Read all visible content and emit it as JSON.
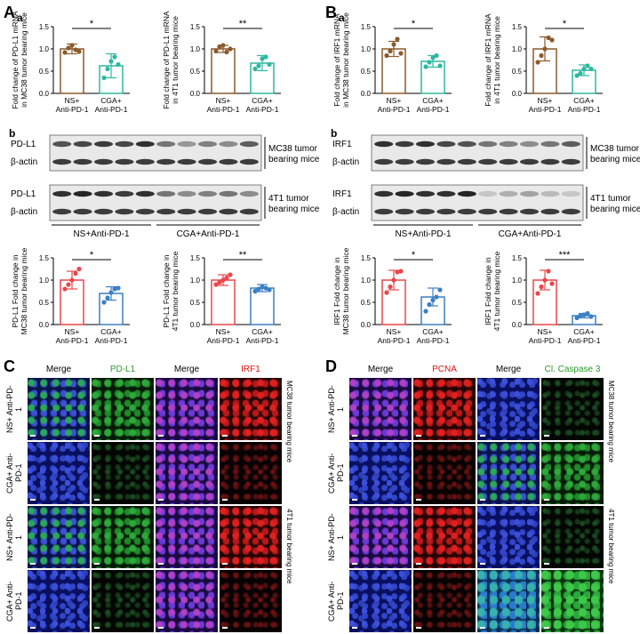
{
  "panels": {
    "A": "A",
    "A_a": "a",
    "A_b": "b",
    "B": "B",
    "B_a": "a",
    "B_b": "b",
    "C": "C",
    "D": "D"
  },
  "colors": {
    "ns_bar": "#8B5A2B",
    "cga_bar": "#2fb8a0",
    "ns_wb": "#e8474b",
    "cga_wb": "#3b7fc4",
    "red_dot": "#e8474b",
    "blue_dot": "#3b7fc4"
  },
  "chart_data": [
    {
      "id": "A_a_left",
      "type": "bar",
      "categories": [
        "NS+\nAnti-PD-1",
        "CGA+\nAnti-PD-1"
      ],
      "values": [
        1.0,
        0.62
      ],
      "errors": [
        0.11,
        0.27
      ],
      "points": [
        [
          0.92,
          1.02,
          1.08,
          0.98,
          0.94
        ],
        [
          0.35,
          0.55,
          0.72,
          0.82,
          0.65
        ]
      ],
      "ylabel": "Fold change of PD-L1 mRNA\nin MC38 tumor bearing mice",
      "ylim": [
        0,
        1.5
      ],
      "sig": "*",
      "yticks": [
        "0.0",
        "0.5",
        "1.0",
        "1.5"
      ]
    },
    {
      "id": "A_a_right",
      "type": "bar",
      "categories": [
        "NS+\nAnti-PD-1",
        "CGA+\nAnti-PD-1"
      ],
      "values": [
        1.0,
        0.68
      ],
      "errors": [
        0.08,
        0.17
      ],
      "points": [
        [
          0.95,
          1.05,
          1.08,
          0.93,
          1.0
        ],
        [
          0.55,
          0.62,
          0.78,
          0.82,
          0.65
        ]
      ],
      "ylabel": "Fold change of PD-L1 mRNA\nin 4T1 tumor bearing mice",
      "ylim": [
        0,
        1.5
      ],
      "sig": "**",
      "yticks": [
        "0.0",
        "0.5",
        "1.0",
        "1.5"
      ]
    },
    {
      "id": "B_a_left",
      "type": "bar",
      "categories": [
        "NS+\nAnti-PD-1",
        "CGA+\nAnti-PD-1"
      ],
      "values": [
        1.0,
        0.72
      ],
      "errors": [
        0.17,
        0.13
      ],
      "points": [
        [
          0.85,
          0.95,
          1.1,
          1.22,
          0.9
        ],
        [
          0.6,
          0.7,
          0.8,
          0.85,
          0.62
        ]
      ],
      "ylabel": "Fold change of IRF1 mRNA\nin MC38 tumor bearing mice",
      "ylim": [
        0,
        1.5
      ],
      "sig": "*",
      "yticks": [
        "0.0",
        "0.5",
        "1.0",
        "1.5"
      ]
    },
    {
      "id": "B_a_right",
      "type": "bar",
      "categories": [
        "NS+\nAnti-PD-1",
        "CGA+\nAnti-PD-1"
      ],
      "values": [
        1.0,
        0.52
      ],
      "errors": [
        0.27,
        0.12
      ],
      "points": [
        [
          0.7,
          0.85,
          1.0,
          1.25,
          1.2
        ],
        [
          0.4,
          0.45,
          0.55,
          0.62,
          0.55
        ]
      ],
      "ylabel": "Fold change of IRF1 mRNA\nin 4T1 tumor bearing mice",
      "ylim": [
        0,
        1.5
      ],
      "sig": "*",
      "yticks": [
        "0.0",
        "0.5",
        "1.0",
        "1.5"
      ]
    },
    {
      "id": "A_b_left",
      "type": "bar",
      "categories": [
        "NS+\nAnti-PD-1",
        "CGA+\nAnti-PD-1"
      ],
      "values": [
        1.0,
        0.7
      ],
      "errors": [
        0.2,
        0.15
      ],
      "points": [
        [
          0.8,
          0.9,
          1.0,
          1.15,
          1.25
        ],
        [
          0.5,
          0.6,
          0.72,
          0.8,
          0.82
        ]
      ],
      "ylabel": "PD-L1 Fold change in\nMC38 tumor bearing mice",
      "ylim": [
        0,
        1.5
      ],
      "sig": "*",
      "yticks": [
        "0.0",
        "0.5",
        "1.0",
        "1.5"
      ]
    },
    {
      "id": "A_b_right",
      "type": "bar",
      "categories": [
        "NS+\nAnti-PD-1",
        "CGA+\nAnti-PD-1"
      ],
      "values": [
        1.0,
        0.82
      ],
      "errors": [
        0.12,
        0.08
      ],
      "points": [
        [
          0.9,
          0.95,
          1.0,
          1.05,
          1.12
        ],
        [
          0.75,
          0.8,
          0.85,
          0.82,
          0.78
        ]
      ],
      "ylabel": "PD-L1 Fold change in\n4T1 tumor bearing mice",
      "ylim": [
        0,
        1.5
      ],
      "sig": "**",
      "yticks": [
        "0.0",
        "0.5",
        "1.0",
        "1.5"
      ]
    },
    {
      "id": "B_b_left",
      "type": "bar",
      "categories": [
        "NS+\nAnti-PD-1",
        "CGA+\nAnti-PD-1"
      ],
      "values": [
        1.0,
        0.62
      ],
      "errors": [
        0.22,
        0.2
      ],
      "points": [
        [
          0.72,
          0.85,
          1.0,
          1.18,
          1.2
        ],
        [
          0.3,
          0.45,
          0.55,
          0.62,
          0.78
        ]
      ],
      "ylabel": "IRF1 Fold change in\nMC38 tumor bearing mice",
      "ylim": [
        0,
        1.5
      ],
      "sig": "*",
      "yticks": [
        "0.0",
        "0.5",
        "1.0",
        "1.5"
      ]
    },
    {
      "id": "B_b_right",
      "type": "bar",
      "categories": [
        "NS+\nAnti-PD-1",
        "CGA+\nAnti-PD-1"
      ],
      "values": [
        1.0,
        0.2
      ],
      "errors": [
        0.22,
        0.05
      ],
      "points": [
        [
          0.7,
          0.85,
          1.0,
          1.2,
          0.92
        ],
        [
          0.15,
          0.2,
          0.22,
          0.25,
          0.18
        ]
      ],
      "ylabel": "IRF1 Fold change in\n4T1 tumor bearing mice",
      "ylim": [
        0,
        1.5
      ],
      "sig": "***",
      "yticks": [
        "0.0",
        "0.5",
        "1.0",
        "1.5"
      ]
    }
  ],
  "westerns": {
    "A_mc38": {
      "rows": [
        "PD-L1",
        "β-actin"
      ],
      "side": "MC38 tumor\nbearing mice",
      "pdl1": [
        0.75,
        0.8,
        0.85,
        0.8,
        0.9,
        0.6,
        0.45,
        0.55,
        0.5,
        0.7
      ]
    },
    "A_4t1": {
      "rows": [
        "PD-L1",
        "β-actin"
      ],
      "side": "4T1 tumor\nbearing mice",
      "pdl1": [
        0.9,
        0.95,
        0.9,
        0.85,
        0.9,
        0.6,
        0.5,
        0.55,
        0.6,
        0.5
      ]
    },
    "A_groups": [
      "NS+Anti-PD-1",
      "CGA+Anti-PD-1"
    ],
    "B_mc38": {
      "rows": [
        "IRF1",
        "β-actin"
      ],
      "side": "MC38 tumor\nbearing mice",
      "irf1": [
        0.9,
        0.85,
        0.9,
        0.8,
        0.75,
        0.6,
        0.55,
        0.5,
        0.6,
        0.7
      ]
    },
    "B_4t1": {
      "rows": [
        "IRF1",
        "β-actin"
      ],
      "side": "4T1 tumor\nbearing mice",
      "irf1": [
        0.9,
        0.95,
        0.9,
        0.9,
        0.95,
        0.25,
        0.35,
        0.4,
        0.3,
        0.25
      ]
    },
    "B_groups": [
      "NS+Anti-PD-1",
      "CGA+Anti-PD-1"
    ]
  },
  "C": {
    "headers": [
      "Merge",
      "PD-L1",
      "Merge",
      "IRF1"
    ],
    "header_colors": [
      "#000000",
      "#2a9d2a",
      "#000000",
      "#e01010"
    ],
    "rows": [
      "NS+\nAnti-PD-1",
      "CGA+\nAnti-PD-1",
      "NS+\nAnti-PD-1",
      "CGA+\nAnti-PD-1"
    ],
    "side": [
      "MC38 tumor bearing mice",
      "4T1 tumor bearing mice"
    ]
  },
  "D": {
    "headers": [
      "Merge",
      "PCNA",
      "Merge",
      "Cl. Caspase 3"
    ],
    "header_colors": [
      "#000000",
      "#e01010",
      "#000000",
      "#2a9d2a"
    ],
    "rows": [
      "NS+\nAnti-PD-1",
      "CGA+\nAnti-PD-1",
      "NS+\nAnti-PD-1",
      "CGA+\nAnti-PD-1"
    ],
    "side": [
      "MC38 tumor bearing mice",
      "4T1 tumor bearing mice"
    ]
  }
}
